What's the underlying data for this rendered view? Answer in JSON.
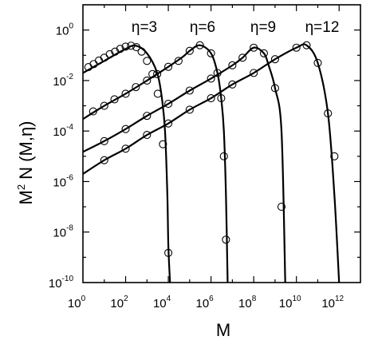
{
  "chart_data": {
    "type": "line",
    "title": "",
    "xlabel": "M",
    "ylabel": {
      "base": "M",
      "sup": "2",
      "rest": " N (M,η)"
    },
    "x_scale": "log10",
    "y_scale": "log10",
    "xlim": [
      1,
      10000000000000.0
    ],
    "ylim": [
      1e-10,
      10
    ],
    "x_ticks": [
      {
        "exp": "0",
        "value": 1
      },
      {
        "exp": "2",
        "value": 100
      },
      {
        "exp": "4",
        "value": 10000
      },
      {
        "exp": "6",
        "value": 1000000
      },
      {
        "exp": "8",
        "value": 100000000
      },
      {
        "exp": "10",
        "value": 10000000000
      },
      {
        "exp": "12",
        "value": 1000000000000
      }
    ],
    "y_ticks": [
      {
        "exp": "-10",
        "value": 1e-10
      },
      {
        "exp": "-8",
        "value": 1e-08
      },
      {
        "exp": "-6",
        "value": 1e-06
      },
      {
        "exp": "-4",
        "value": 0.0001
      },
      {
        "exp": "-2",
        "value": 0.01
      },
      {
        "exp": "0",
        "value": 1
      }
    ],
    "tick_base": "10",
    "grid": false,
    "legend": "none",
    "line_style": "solid black curves with open-circle markers",
    "series": [
      {
        "label": "η=3",
        "curve": {
          "x": [
            1,
            10,
            100,
            300,
            1000,
            3000,
            5000,
            7000,
            9000,
            10000,
            12000
          ],
          "y": [
            0.02,
            0.06,
            0.18,
            0.24,
            0.12,
            0.02,
            0.002,
            0.0001,
            3e-07,
            3e-09,
            1e-10
          ]
        },
        "markers": {
          "x": [
            1.8,
            3.2,
            5.6,
            10,
            18,
            32,
            56,
            100,
            180,
            320,
            560,
            1000,
            1800,
            3200,
            5600,
            10000
          ],
          "y": [
            0.034,
            0.045,
            0.062,
            0.08,
            0.11,
            0.14,
            0.18,
            0.22,
            0.24,
            0.21,
            0.14,
            0.06,
            0.018,
            0.003,
            3e-05,
            1.5e-09
          ]
        }
      },
      {
        "label": "η=6",
        "curve": {
          "x": [
            1,
            10,
            100,
            1000,
            10000,
            50000,
            100000,
            300000,
            1000000,
            2000000,
            3000000,
            4000000,
            5000000,
            6000000
          ],
          "y": [
            0.0003,
            0.001,
            0.003,
            0.01,
            0.035,
            0.09,
            0.15,
            0.25,
            0.12,
            0.02,
            0.002,
            0.0001,
            3e-07,
            1e-10
          ]
        },
        "markers": {
          "x": [
            3,
            10,
            30,
            100,
            300,
            1000,
            3000,
            10000,
            30000,
            100000,
            300000,
            1000000,
            2000000,
            3000000,
            4000000,
            5000000
          ],
          "y": [
            0.0006,
            0.001,
            0.0018,
            0.003,
            0.0055,
            0.01,
            0.018,
            0.035,
            0.06,
            0.15,
            0.25,
            0.12,
            0.02,
            0.002,
            1e-05,
            5e-09
          ]
        }
      },
      {
        "label": "η=9",
        "curve": {
          "x": [
            1,
            10,
            100,
            1000,
            10000,
            100000,
            1000000,
            10000000,
            30000000,
            100000000,
            300000000,
            500000000,
            1000000000,
            2000000000,
            3000000000
          ],
          "y": [
            1.5e-05,
            4e-05,
            0.00012,
            0.0004,
            0.0012,
            0.004,
            0.012,
            0.04,
            0.08,
            0.2,
            0.12,
            0.04,
            0.005,
            0.0001,
            1e-10
          ]
        },
        "markers": {
          "x": [
            10,
            100,
            1000,
            10000,
            100000,
            1000000,
            10000000,
            30000000,
            100000000,
            300000000,
            1000000000,
            2000000000
          ],
          "y": [
            4e-05,
            0.00012,
            0.0004,
            0.0012,
            0.004,
            0.012,
            0.04,
            0.08,
            0.2,
            0.12,
            0.005,
            1e-07
          ]
        }
      },
      {
        "label": "η=12",
        "curve": {
          "x": [
            1,
            10,
            100,
            1000,
            10000,
            100000,
            1000000,
            10000000,
            100000000,
            1000000000,
            10000000000,
            30000000000,
            100000000000,
            300000000000,
            600000000000,
            1000000000000
          ],
          "y": [
            2e-06,
            7e-06,
            2e-05,
            7e-05,
            0.0002,
            0.0007,
            0.002,
            0.007,
            0.02,
            0.07,
            0.2,
            0.25,
            0.05,
            0.0005,
            3e-07,
            1e-10
          ]
        },
        "markers": {
          "x": [
            10,
            100,
            1000,
            10000,
            100000,
            1000000,
            10000000,
            100000000,
            1000000000,
            10000000000,
            30000000000,
            100000000000,
            300000000000,
            600000000000
          ],
          "y": [
            7e-06,
            2e-05,
            7e-05,
            0.0002,
            0.0007,
            0.002,
            0.007,
            0.02,
            0.07,
            0.2,
            0.25,
            0.05,
            0.0005,
            1e-05
          ]
        }
      }
    ]
  }
}
